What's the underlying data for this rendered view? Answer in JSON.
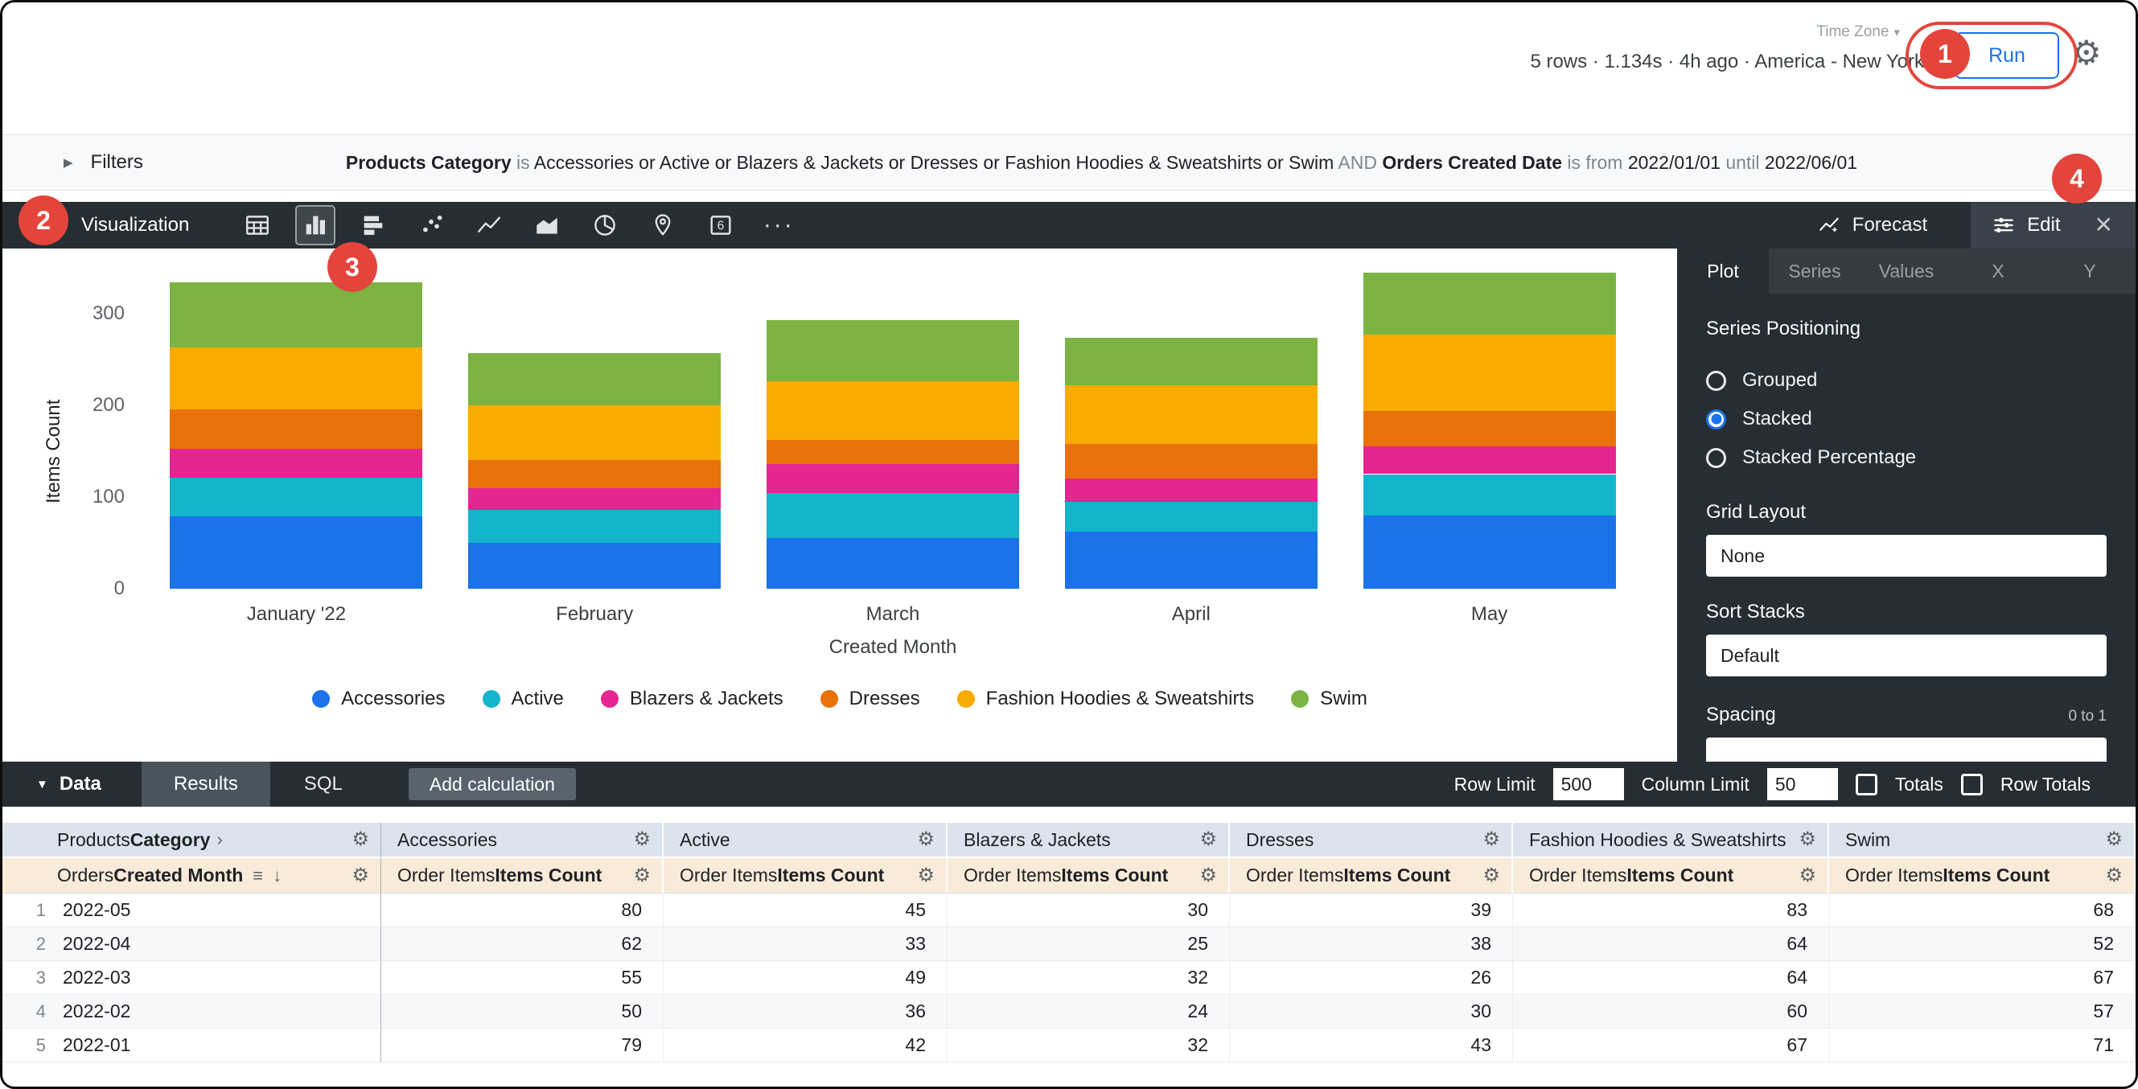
{
  "topbar": {
    "stats": "5 rows · 1.134s · 4h ago · America - New York",
    "time_zone_label": "Time Zone",
    "run_label": "Run"
  },
  "annotations": {
    "badges": [
      "1",
      "2",
      "3",
      "4"
    ]
  },
  "filters": {
    "label": "Filters",
    "segments": [
      {
        "text": "Products Category ",
        "style": "field"
      },
      {
        "text": "is ",
        "style": "op"
      },
      {
        "text": "Accessories or Active or Blazers & Jackets or Dresses or Fashion Hoodies & Sweatshirts or Swim ",
        "style": "value"
      },
      {
        "text": "AND ",
        "style": "conj"
      },
      {
        "text": "Orders Created Date ",
        "style": "field"
      },
      {
        "text": "is from ",
        "style": "op"
      },
      {
        "text": "2022/01/01 ",
        "style": "value"
      },
      {
        "text": "until ",
        "style": "op"
      },
      {
        "text": "2022/06/01",
        "style": "value"
      }
    ]
  },
  "viz": {
    "label": "Visualization",
    "chart_types": [
      {
        "name": "table",
        "selected": false
      },
      {
        "name": "column",
        "selected": true
      },
      {
        "name": "bar",
        "selected": false
      },
      {
        "name": "scatter",
        "selected": false
      },
      {
        "name": "line",
        "selected": false
      },
      {
        "name": "area",
        "selected": false
      },
      {
        "name": "pie",
        "selected": false
      },
      {
        "name": "map",
        "selected": false
      },
      {
        "name": "single-value",
        "selected": false
      },
      {
        "name": "more",
        "selected": false
      }
    ],
    "forecast_label": "Forecast",
    "edit_label": "Edit"
  },
  "edit_panel": {
    "tabs": [
      {
        "label": "Plot",
        "selected": true
      },
      {
        "label": "Series",
        "selected": false
      },
      {
        "label": "Values",
        "selected": false
      },
      {
        "label": "X",
        "selected": false
      },
      {
        "label": "Y",
        "selected": false
      }
    ],
    "series_positioning": {
      "label": "Series Positioning",
      "options": [
        {
          "label": "Grouped",
          "selected": false
        },
        {
          "label": "Stacked",
          "selected": true
        },
        {
          "label": "Stacked Percentage",
          "selected": false
        }
      ]
    },
    "grid_layout": {
      "label": "Grid Layout",
      "value": "None"
    },
    "sort_stacks": {
      "label": "Sort Stacks",
      "value": "Default"
    },
    "spacing": {
      "label": "Spacing",
      "hint": "0 to 1"
    }
  },
  "chart_data": {
    "type": "bar",
    "stacked": true,
    "categories": [
      "January '22",
      "February",
      "March",
      "April",
      "May"
    ],
    "series": [
      {
        "name": "Accessories",
        "color": "#1a73e8",
        "values": [
          79,
          50,
          55,
          62,
          80
        ]
      },
      {
        "name": "Active",
        "color": "#12b5cb",
        "values": [
          42,
          36,
          49,
          33,
          45
        ]
      },
      {
        "name": "Blazers & Jackets",
        "color": "#e52592",
        "values": [
          32,
          24,
          32,
          25,
          30
        ]
      },
      {
        "name": "Dresses",
        "color": "#e8710a",
        "values": [
          43,
          30,
          26,
          38,
          39
        ]
      },
      {
        "name": "Fashion Hoodies & Sweatshirts",
        "color": "#f9ab00",
        "values": [
          67,
          60,
          64,
          64,
          83
        ]
      },
      {
        "name": "Swim",
        "color": "#7cb342",
        "values": [
          71,
          57,
          67,
          52,
          68
        ]
      }
    ],
    "xlabel": "Created Month",
    "ylabel": "Items Count",
    "yticks": [
      0,
      100,
      200,
      300
    ],
    "ylim": [
      0,
      360
    ],
    "grid": false,
    "legend_position": "bottom"
  },
  "data_bar": {
    "label": "Data",
    "tabs": [
      {
        "label": "Results",
        "selected": true
      },
      {
        "label": "SQL",
        "selected": false
      }
    ],
    "add_calculation_label": "Add calculation",
    "row_limit_label": "Row Limit",
    "row_limit_value": "500",
    "column_limit_label": "Column Limit",
    "column_limit_value": "50",
    "totals_label": "Totals",
    "row_totals_label": "Row Totals"
  },
  "table": {
    "pivot_field": {
      "view": "Products",
      "field": "Category"
    },
    "dimension_field": {
      "view": "Orders",
      "field": "Created Month"
    },
    "measure_field": {
      "view": "Order Items",
      "field": "Items Count"
    },
    "pivot_values": [
      "Accessories",
      "Active",
      "Blazers & Jackets",
      "Dresses",
      "Fashion Hoodies & Sweatshirts",
      "Swim"
    ],
    "rows": [
      {
        "index": "1",
        "month": "2022-05",
        "values": [
          80,
          45,
          30,
          39,
          83,
          68
        ]
      },
      {
        "index": "2",
        "month": "2022-04",
        "values": [
          62,
          33,
          25,
          38,
          64,
          52
        ]
      },
      {
        "index": "3",
        "month": "2022-03",
        "values": [
          55,
          49,
          32,
          26,
          64,
          67
        ]
      },
      {
        "index": "4",
        "month": "2022-02",
        "values": [
          50,
          36,
          24,
          30,
          60,
          57
        ]
      },
      {
        "index": "5",
        "month": "2022-01",
        "values": [
          79,
          42,
          32,
          43,
          67,
          71
        ]
      }
    ]
  }
}
